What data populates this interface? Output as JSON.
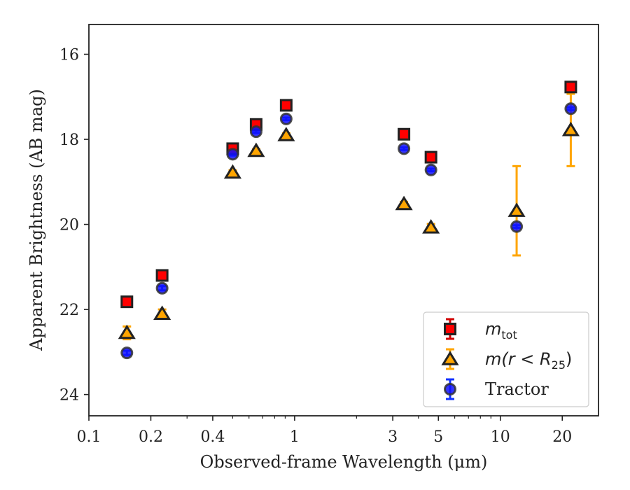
{
  "chart_data": {
    "type": "scatter",
    "xlabel": "Observed-frame Wavelength (μm)",
    "ylabel": "Apparent Brightness (AB mag)",
    "x_scale": "log",
    "xlim": [
      0.1,
      30
    ],
    "ylim": [
      24.5,
      15.3
    ],
    "y_inverted": true,
    "x_ticks": [
      {
        "value": 0.1,
        "label": "0.1"
      },
      {
        "value": 0.2,
        "label": "0.2"
      },
      {
        "value": 0.4,
        "label": "0.4"
      },
      {
        "value": 1,
        "label": "1"
      },
      {
        "value": 3,
        "label": "3"
      },
      {
        "value": 5,
        "label": "5"
      },
      {
        "value": 10,
        "label": "10"
      },
      {
        "value": 20,
        "label": "20"
      }
    ],
    "y_ticks": [
      {
        "value": 16,
        "label": "16"
      },
      {
        "value": 18,
        "label": "18"
      },
      {
        "value": 20,
        "label": "20"
      },
      {
        "value": 22,
        "label": "22"
      },
      {
        "value": 24,
        "label": "24"
      }
    ],
    "grid": false,
    "legend_position": "lower-right",
    "series": [
      {
        "name": "m_tot",
        "legend_main": "m",
        "legend_sub": "tot",
        "marker": "square",
        "color": "#ff0000",
        "edge": "#222222",
        "err_color": "#d00000",
        "points": [
          {
            "x": 0.153,
            "y": 21.82,
            "err": 0.05
          },
          {
            "x": 0.227,
            "y": 21.2,
            "err": 0.05
          },
          {
            "x": 0.5,
            "y": 18.22,
            "err": 0.03
          },
          {
            "x": 0.65,
            "y": 17.65,
            "err": 0.03
          },
          {
            "x": 0.91,
            "y": 17.2,
            "err": 0.03
          },
          {
            "x": 3.4,
            "y": 17.88,
            "err": 0.03
          },
          {
            "x": 4.6,
            "y": 18.42,
            "err": 0.03
          },
          {
            "x": 22,
            "y": 16.77,
            "err": 0.05
          }
        ]
      },
      {
        "name": "m(r < R25)",
        "legend_main": "m(r < R",
        "legend_sub": "25",
        "legend_tail": ")",
        "marker": "triangle",
        "color": "#ffa500",
        "edge": "#222222",
        "err_color": "#ffa500",
        "points": [
          {
            "x": 0.153,
            "y": 22.55,
            "err": 0.15
          },
          {
            "x": 0.227,
            "y": 22.1,
            "err": 0.1
          },
          {
            "x": 0.5,
            "y": 18.78,
            "err": 0.05
          },
          {
            "x": 0.65,
            "y": 18.27,
            "err": 0.04
          },
          {
            "x": 0.91,
            "y": 17.9,
            "err": 0.04
          },
          {
            "x": 3.4,
            "y": 19.52,
            "err": 0.05
          },
          {
            "x": 4.6,
            "y": 20.07,
            "err": 0.08
          },
          {
            "x": 12,
            "y": 19.68,
            "err": 1.05
          },
          {
            "x": 22,
            "y": 17.78,
            "err": 0.85
          }
        ]
      },
      {
        "name": "Tractor",
        "legend_main": "Tractor",
        "marker": "circle",
        "color": "#1010ff",
        "edge": "#333333",
        "err_color": "#1030ff",
        "points": [
          {
            "x": 0.153,
            "y": 23.02,
            "err": 0.05
          },
          {
            "x": 0.227,
            "y": 21.5,
            "err": 0.05
          },
          {
            "x": 0.5,
            "y": 18.35,
            "err": 0.03
          },
          {
            "x": 0.65,
            "y": 17.82,
            "err": 0.03
          },
          {
            "x": 0.91,
            "y": 17.52,
            "err": 0.03
          },
          {
            "x": 3.4,
            "y": 18.22,
            "err": 0.03
          },
          {
            "x": 4.6,
            "y": 18.72,
            "err": 0.03
          },
          {
            "x": 12,
            "y": 20.05,
            "err": 0.03
          },
          {
            "x": 22,
            "y": 17.28,
            "err": 0.03
          }
        ]
      }
    ]
  }
}
